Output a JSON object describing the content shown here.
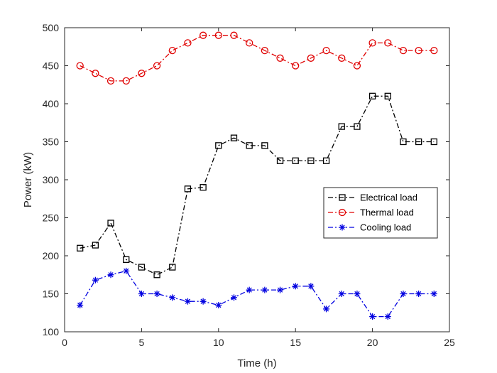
{
  "chart_data": {
    "type": "line",
    "title": "",
    "xlabel": "Time (h)",
    "ylabel": "Power (kW)",
    "xlim": [
      0,
      25
    ],
    "ylim": [
      100,
      500
    ],
    "xticks": [
      0,
      5,
      10,
      15,
      20,
      25
    ],
    "yticks": [
      100,
      150,
      200,
      250,
      300,
      350,
      400,
      450,
      500
    ],
    "grid": false,
    "legend_position": "right",
    "x": [
      1,
      2,
      3,
      4,
      5,
      6,
      7,
      8,
      9,
      10,
      11,
      12,
      13,
      14,
      15,
      16,
      17,
      18,
      19,
      20,
      21,
      22,
      23,
      24
    ],
    "series": [
      {
        "name": "Electrical load",
        "color": "#000000",
        "marker": "square",
        "values": [
          210,
          214,
          243,
          195,
          185,
          175,
          185,
          288,
          290,
          345,
          355,
          345,
          345,
          325,
          325,
          325,
          325,
          370,
          370,
          410,
          410,
          350,
          350,
          350
        ]
      },
      {
        "name": "Thermal load",
        "color": "#e00000",
        "marker": "circle",
        "values": [
          450,
          440,
          430,
          430,
          440,
          450,
          470,
          480,
          490,
          490,
          490,
          480,
          470,
          460,
          450,
          460,
          470,
          460,
          450,
          480,
          480,
          470,
          470,
          470
        ]
      },
      {
        "name": "Cooling load",
        "color": "#0000e0",
        "marker": "asterisk",
        "values": [
          135,
          168,
          175,
          180,
          150,
          150,
          145,
          140,
          140,
          135,
          145,
          155,
          155,
          155,
          160,
          160,
          130,
          150,
          150,
          120,
          120,
          150,
          150,
          150
        ]
      }
    ]
  }
}
